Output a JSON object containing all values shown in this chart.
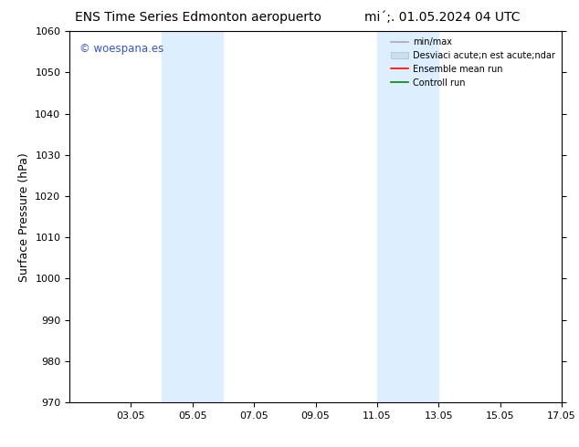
{
  "title_left": "ENS Time Series Edmonton aeropuerto",
  "title_right": "mi´;. 01.05.2024 04 UTC",
  "ylabel": "Surface Pressure (hPa)",
  "ylim": [
    970,
    1060
  ],
  "yticks": [
    970,
    980,
    990,
    1000,
    1010,
    1020,
    1030,
    1040,
    1050,
    1060
  ],
  "xlim": [
    1,
    17
  ],
  "xtick_positions": [
    3,
    5,
    7,
    9,
    11,
    13,
    15,
    17
  ],
  "xtick_labels": [
    "03.05",
    "05.05",
    "07.05",
    "09.05",
    "11.05",
    "13.05",
    "15.05",
    "17.05"
  ],
  "shaded_regions": [
    {
      "xstart": 4.0,
      "xend": 6.0,
      "color": "#ddeeff"
    },
    {
      "xstart": 11.0,
      "xend": 13.0,
      "color": "#ddeeff"
    }
  ],
  "watermark_text": "© woespana.es",
  "watermark_color": "#3355cc",
  "background_color": "#ffffff",
  "plot_bg_color": "#ffffff",
  "legend_labels": [
    "min/max",
    "Desviaci acute;n est acute;ndar",
    "Ensemble mean run",
    "Controll run"
  ],
  "legend_colors": [
    "#aaaaaa",
    "#c8dff0",
    "#ff0000",
    "#008800"
  ],
  "title_fontsize": 10,
  "tick_fontsize": 8,
  "label_fontsize": 9
}
